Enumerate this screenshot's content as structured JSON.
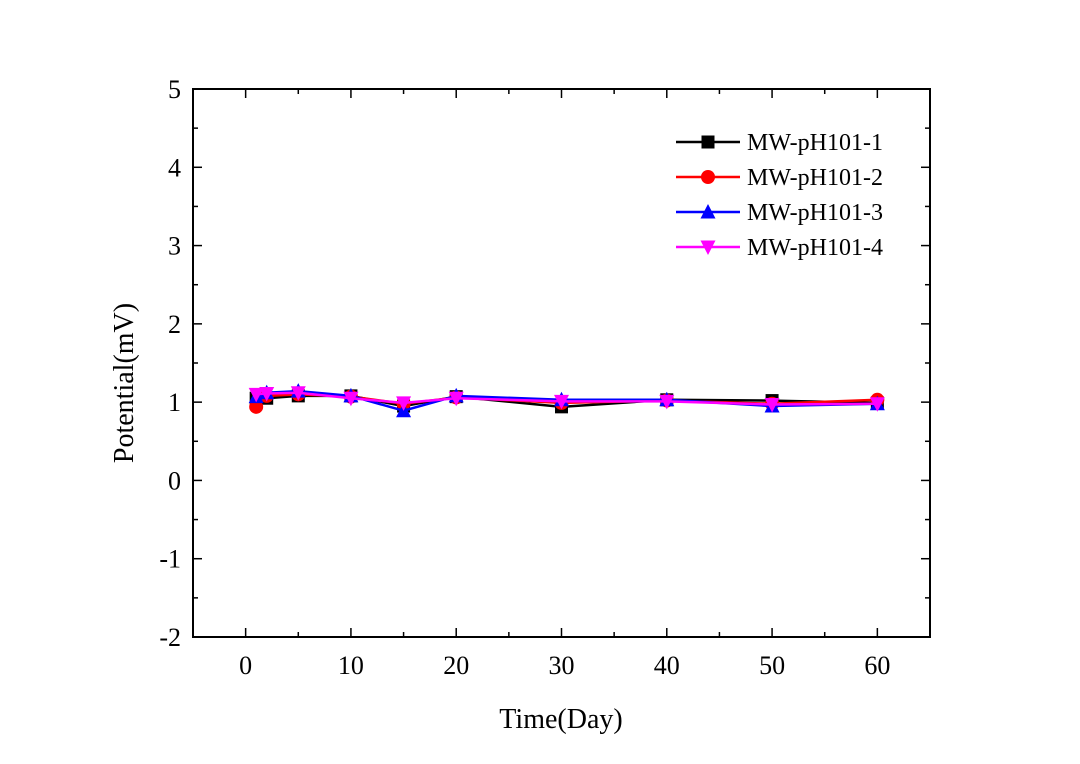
{
  "chart_data": {
    "type": "line",
    "title": "",
    "xlabel": "Time(Day)",
    "ylabel": "Potential(mV)",
    "xlim": [
      -5,
      65
    ],
    "ylim": [
      -2,
      5
    ],
    "xticks": [
      0,
      10,
      20,
      30,
      40,
      50,
      60
    ],
    "yticks": [
      -2,
      -1,
      0,
      1,
      2,
      3,
      4,
      5
    ],
    "grid": false,
    "legend_position": "top-right",
    "series": [
      {
        "name": "MW-pH101-1",
        "color": "#000000",
        "marker": "square",
        "x": [
          1,
          2,
          5,
          10,
          15,
          20,
          30,
          40,
          50,
          60
        ],
        "y": [
          1.05,
          1.05,
          1.08,
          1.08,
          0.95,
          1.07,
          0.94,
          1.03,
          1.02,
          0.99
        ]
      },
      {
        "name": "MW-pH101-2",
        "color": "#ff0000",
        "marker": "circle",
        "x": [
          1,
          2,
          5,
          10,
          15,
          20,
          30,
          40,
          50,
          60
        ],
        "y": [
          0.94,
          1.08,
          1.1,
          1.07,
          0.98,
          1.06,
          0.99,
          1.02,
          0.98,
          1.03
        ]
      },
      {
        "name": "MW-pH101-3",
        "color": "#0000ff",
        "marker": "triangle-up",
        "x": [
          1,
          2,
          5,
          10,
          15,
          20,
          30,
          40,
          50,
          60
        ],
        "y": [
          1.07,
          1.12,
          1.14,
          1.08,
          0.89,
          1.08,
          1.03,
          1.03,
          0.95,
          0.98
        ]
      },
      {
        "name": "MW-pH101-4",
        "color": "#ff00ff",
        "marker": "triangle-down",
        "x": [
          1,
          2,
          5,
          10,
          15,
          20,
          30,
          40,
          50,
          60
        ],
        "y": [
          1.1,
          1.11,
          1.12,
          1.05,
          0.99,
          1.05,
          1.01,
          1.01,
          0.97,
          0.98
        ]
      }
    ]
  }
}
